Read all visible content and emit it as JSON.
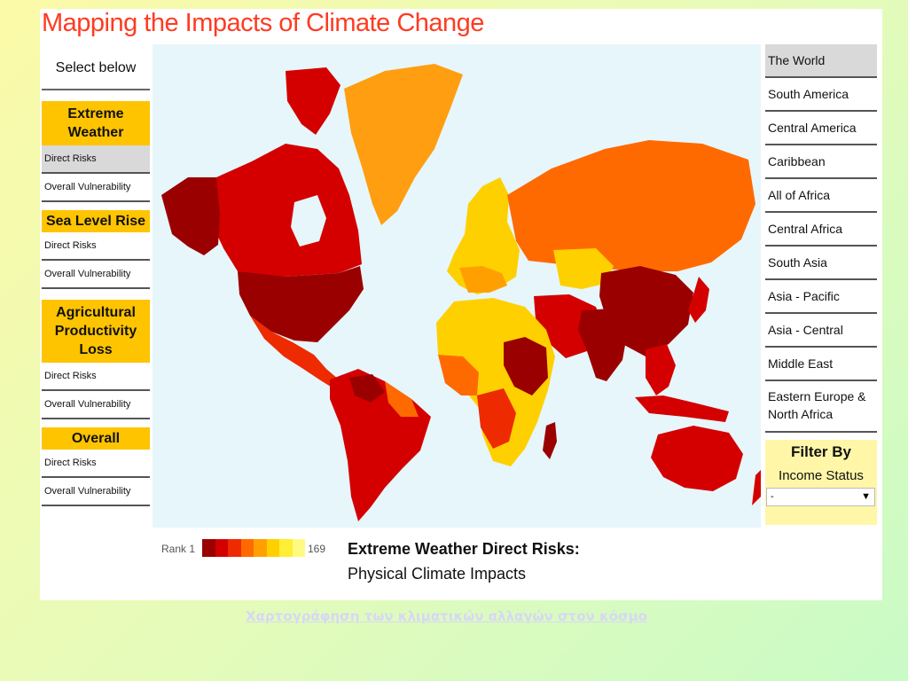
{
  "app": {
    "title": "Mapping the Impacts of Climate Change"
  },
  "left_panel": {
    "select_label": "Select below",
    "categories": [
      {
        "title": "Extreme Weather",
        "items": [
          "Direct Risks",
          "Overall Vulnerability"
        ]
      },
      {
        "title": "Sea Level Rise",
        "items": [
          "Direct Risks",
          "Overall Vulnerability"
        ]
      },
      {
        "title": "Agricultural Productivity Loss",
        "items": [
          "Direct Risks",
          "Overall Vulnerability"
        ]
      },
      {
        "title": "Overall",
        "items": [
          "Direct Risks",
          "Overall Vulnerability"
        ]
      }
    ],
    "active_item": "Extreme Weather / Direct Risks"
  },
  "regions": {
    "active": "The World",
    "items": [
      "The World",
      "South America",
      "Central America",
      "Caribbean",
      "All of Africa",
      "Central Africa",
      "South Asia",
      "Asia - Pacific",
      "Asia - Central",
      "Middle East",
      "Eastern Europe & North Africa"
    ]
  },
  "filter": {
    "title": "Filter By",
    "subtitle": "Income Status",
    "selected": "-"
  },
  "legend": {
    "min_label": "Rank 1",
    "max_label": "169",
    "colors": [
      "#9a0000",
      "#d40000",
      "#ee2a00",
      "#ff6a00",
      "#ffa000",
      "#ffd000",
      "#ffee33",
      "#fffa80"
    ]
  },
  "map": {
    "heading": "Extreme Weather Direct Risks:",
    "subheading": "Physical Climate Impacts",
    "water_color": "#e6f6fb"
  },
  "footer": {
    "link_text": "Χαρτογράφηση των κλιματικών αλλαγών στον κόσμο"
  }
}
